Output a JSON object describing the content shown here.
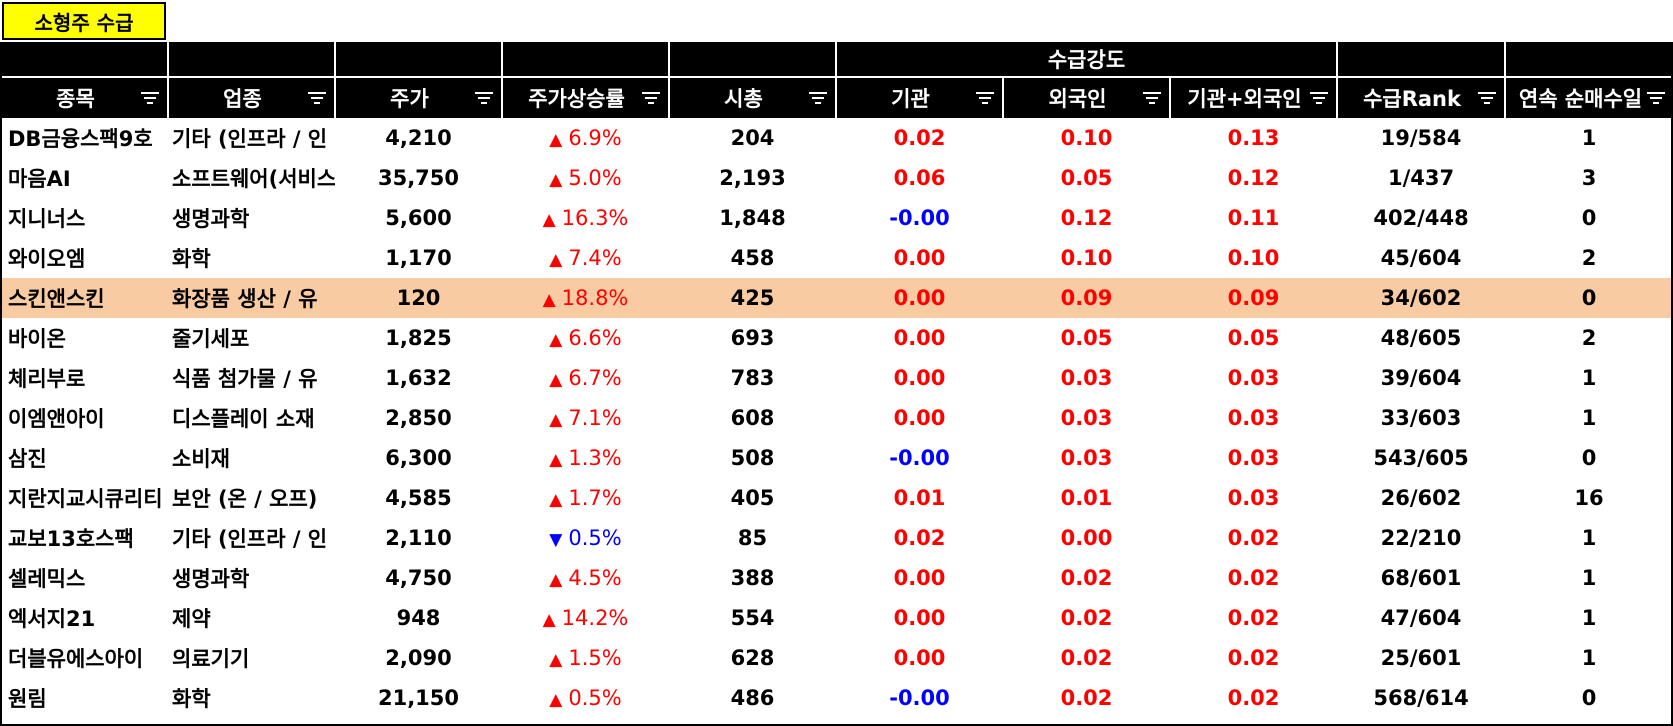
{
  "title_tab": "소형주 수급",
  "group_header": "수급강도",
  "headers": [
    "종목",
    "업종",
    "주가",
    "주가상승률",
    "시총",
    "기관",
    "외국인",
    "기관+외국인",
    "수급Rank",
    "연속 순매수일"
  ],
  "colors": {
    "header_bg": "#000000",
    "title_bg": "#ffff00",
    "highlight_row": "#f8cba2",
    "up": "#ff0000",
    "down": "#0000ff"
  },
  "rows": [
    {
      "name": "DB금융스팩9호",
      "sector": "기타 (인프라 / 인",
      "price": "4,210",
      "dir": "up",
      "arrow": "▲",
      "change": "6.9%",
      "cap": "204",
      "inst": "0.02",
      "foreign": "0.10",
      "both": "0.13",
      "rank": "19/584",
      "days": "1",
      "highlight": false
    },
    {
      "name": "마음AI",
      "sector": "소프트웨어(서비스",
      "price": "35,750",
      "dir": "up",
      "arrow": "▲",
      "change": "5.0%",
      "cap": "2,193",
      "inst": "0.06",
      "foreign": "0.05",
      "both": "0.12",
      "rank": "1/437",
      "days": "3",
      "highlight": false
    },
    {
      "name": "지니너스",
      "sector": "생명과학",
      "price": "5,600",
      "dir": "up",
      "arrow": "▲",
      "change": "16.3%",
      "cap": "1,848",
      "inst": "-0.00",
      "foreign": "0.12",
      "both": "0.11",
      "rank": "402/448",
      "days": "0",
      "highlight": false
    },
    {
      "name": "와이오엠",
      "sector": "화학",
      "price": "1,170",
      "dir": "up",
      "arrow": "▲",
      "change": "7.4%",
      "cap": "458",
      "inst": "0.00",
      "foreign": "0.10",
      "both": "0.10",
      "rank": "45/604",
      "days": "2",
      "highlight": false
    },
    {
      "name": "스킨앤스킨",
      "sector": "화장품 생산 / 유",
      "price": "120",
      "dir": "up",
      "arrow": "▲",
      "change": "18.8%",
      "cap": "425",
      "inst": "0.00",
      "foreign": "0.09",
      "both": "0.09",
      "rank": "34/602",
      "days": "0",
      "highlight": true
    },
    {
      "name": "바이온",
      "sector": "줄기세포",
      "price": "1,825",
      "dir": "up",
      "arrow": "▲",
      "change": "6.6%",
      "cap": "693",
      "inst": "0.00",
      "foreign": "0.05",
      "both": "0.05",
      "rank": "48/605",
      "days": "2",
      "highlight": false
    },
    {
      "name": "체리부로",
      "sector": "식품 첨가물 / 유",
      "price": "1,632",
      "dir": "up",
      "arrow": "▲",
      "change": "6.7%",
      "cap": "783",
      "inst": "0.00",
      "foreign": "0.03",
      "both": "0.03",
      "rank": "39/604",
      "days": "1",
      "highlight": false
    },
    {
      "name": "이엠앤아이",
      "sector": "디스플레이 소재",
      "price": "2,850",
      "dir": "up",
      "arrow": "▲",
      "change": "7.1%",
      "cap": "608",
      "inst": "0.00",
      "foreign": "0.03",
      "both": "0.03",
      "rank": "33/603",
      "days": "1",
      "highlight": false
    },
    {
      "name": "삼진",
      "sector": "소비재",
      "price": "6,300",
      "dir": "up",
      "arrow": "▲",
      "change": "1.3%",
      "cap": "508",
      "inst": "-0.00",
      "foreign": "0.03",
      "both": "0.03",
      "rank": "543/605",
      "days": "0",
      "highlight": false
    },
    {
      "name": "지란지교시큐리티",
      "sector": "보안 (온 / 오프)",
      "price": "4,585",
      "dir": "up",
      "arrow": "▲",
      "change": "1.7%",
      "cap": "405",
      "inst": "0.01",
      "foreign": "0.01",
      "both": "0.03",
      "rank": "26/602",
      "days": "16",
      "highlight": false
    },
    {
      "name": "교보13호스팩",
      "sector": "기타 (인프라 / 인",
      "price": "2,110",
      "dir": "down",
      "arrow": "▼",
      "change": "0.5%",
      "cap": "85",
      "inst": "0.02",
      "foreign": "0.00",
      "both": "0.02",
      "rank": "22/210",
      "days": "1",
      "highlight": false
    },
    {
      "name": "셀레믹스",
      "sector": "생명과학",
      "price": "4,750",
      "dir": "up",
      "arrow": "▲",
      "change": "4.5%",
      "cap": "388",
      "inst": "0.00",
      "foreign": "0.02",
      "both": "0.02",
      "rank": "68/601",
      "days": "1",
      "highlight": false
    },
    {
      "name": "엑서지21",
      "sector": "제약",
      "price": "948",
      "dir": "up",
      "arrow": "▲",
      "change": "14.2%",
      "cap": "554",
      "inst": "0.00",
      "foreign": "0.02",
      "both": "0.02",
      "rank": "47/604",
      "days": "1",
      "highlight": false
    },
    {
      "name": "더블유에스아이",
      "sector": "의료기기",
      "price": "2,090",
      "dir": "up",
      "arrow": "▲",
      "change": "1.5%",
      "cap": "628",
      "inst": "0.00",
      "foreign": "0.02",
      "both": "0.02",
      "rank": "25/601",
      "days": "1",
      "highlight": false
    },
    {
      "name": "원림",
      "sector": "화학",
      "price": "21,150",
      "dir": "up",
      "arrow": "▲",
      "change": "0.5%",
      "cap": "486",
      "inst": "-0.00",
      "foreign": "0.02",
      "both": "0.02",
      "rank": "568/614",
      "days": "0",
      "highlight": false
    }
  ]
}
